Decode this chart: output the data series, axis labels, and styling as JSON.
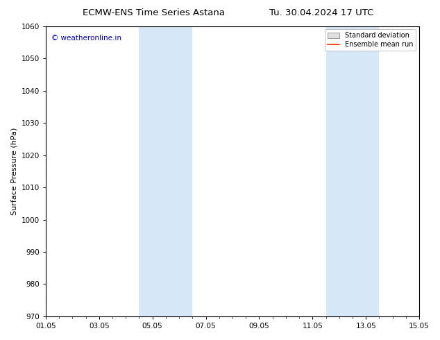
{
  "title_left": "ECMW-ENS Time Series Astana",
  "title_right": "Tu. 30.04.2024 17 UTC",
  "ylabel": "Surface Pressure (hPa)",
  "ylim": [
    970,
    1060
  ],
  "yticks": [
    970,
    980,
    990,
    1000,
    1010,
    1020,
    1030,
    1040,
    1050,
    1060
  ],
  "xlim_start": 0,
  "xlim_end": 14,
  "xtick_labels": [
    "01.05",
    "03.05",
    "05.05",
    "07.05",
    "09.05",
    "11.05",
    "13.05",
    "15.05"
  ],
  "xtick_positions": [
    0,
    2,
    4,
    6,
    8,
    10,
    12,
    14
  ],
  "shaded_bands": [
    {
      "xmin": 3.5,
      "xmax": 5.5
    },
    {
      "xmin": 10.5,
      "xmax": 12.5
    }
  ],
  "shade_color": "#d6e8f7",
  "background_color": "#ffffff",
  "watermark_text": "© weatheronline.in",
  "watermark_color": "#0000cc",
  "watermark_fontsize": 7.5,
  "title_fontsize": 9.5,
  "tick_fontsize": 7.5,
  "ylabel_fontsize": 8,
  "legend_std_facecolor": "#e0e0e0",
  "legend_std_edgecolor": "#999999",
  "legend_mean_color": "#ff2200",
  "spine_color": "#000000",
  "tick_color": "#000000"
}
